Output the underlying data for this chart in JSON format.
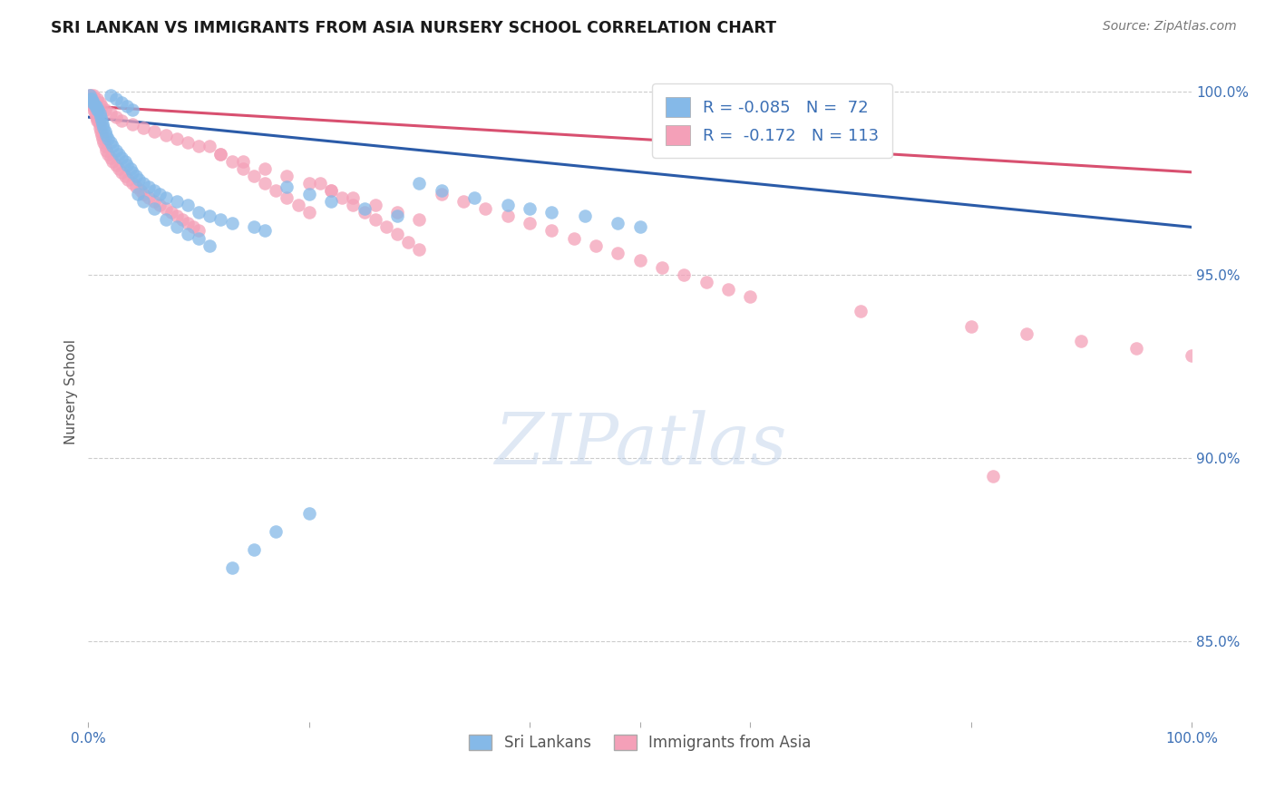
{
  "title": "SRI LANKAN VS IMMIGRANTS FROM ASIA NURSERY SCHOOL CORRELATION CHART",
  "source": "Source: ZipAtlas.com",
  "ylabel": "Nursery School",
  "legend_sri": "Sri Lankans",
  "legend_imm": "Immigrants from Asia",
  "legend_r_sri": "R = -0.085",
  "legend_n_sri": "N =  72",
  "legend_r_imm": "R =  -0.172",
  "legend_n_imm": "N = 113",
  "color_sri": "#85B9E8",
  "color_imm": "#F4A0B8",
  "color_line_sri": "#2B5BA8",
  "color_line_imm": "#D85070",
  "ytick_labels": [
    "85.0%",
    "90.0%",
    "95.0%",
    "100.0%"
  ],
  "ytick_values": [
    0.85,
    0.9,
    0.95,
    1.0
  ],
  "ylim_min": 0.828,
  "ylim_max": 1.008,
  "background_color": "#FFFFFF",
  "grid_color": "#CCCCCC",
  "sri_x": [
    0.001,
    0.002,
    0.003,
    0.004,
    0.005,
    0.006,
    0.007,
    0.008,
    0.009,
    0.01,
    0.011,
    0.012,
    0.013,
    0.014,
    0.015,
    0.016,
    0.018,
    0.02,
    0.022,
    0.025,
    0.028,
    0.03,
    0.033,
    0.035,
    0.038,
    0.04,
    0.043,
    0.046,
    0.05,
    0.055,
    0.06,
    0.065,
    0.07,
    0.08,
    0.09,
    0.1,
    0.11,
    0.12,
    0.13,
    0.15,
    0.16,
    0.18,
    0.2,
    0.22,
    0.25,
    0.28,
    0.3,
    0.32,
    0.35,
    0.38,
    0.4,
    0.42,
    0.45,
    0.48,
    0.5,
    0.02,
    0.025,
    0.03,
    0.035,
    0.04,
    0.045,
    0.05,
    0.06,
    0.07,
    0.08,
    0.09,
    0.1,
    0.11,
    0.13,
    0.15,
    0.17,
    0.2
  ],
  "sri_y": [
    0.999,
    0.998,
    0.998,
    0.997,
    0.997,
    0.996,
    0.996,
    0.995,
    0.995,
    0.994,
    0.993,
    0.992,
    0.991,
    0.99,
    0.989,
    0.988,
    0.987,
    0.986,
    0.985,
    0.984,
    0.983,
    0.982,
    0.981,
    0.98,
    0.979,
    0.978,
    0.977,
    0.976,
    0.975,
    0.974,
    0.973,
    0.972,
    0.971,
    0.97,
    0.969,
    0.967,
    0.966,
    0.965,
    0.964,
    0.963,
    0.962,
    0.974,
    0.972,
    0.97,
    0.968,
    0.966,
    0.975,
    0.973,
    0.971,
    0.969,
    0.968,
    0.967,
    0.966,
    0.964,
    0.963,
    0.999,
    0.998,
    0.997,
    0.996,
    0.995,
    0.972,
    0.97,
    0.968,
    0.965,
    0.963,
    0.961,
    0.96,
    0.958,
    0.87,
    0.875,
    0.88,
    0.885
  ],
  "imm_x": [
    0.001,
    0.002,
    0.002,
    0.003,
    0.003,
    0.004,
    0.004,
    0.005,
    0.005,
    0.006,
    0.006,
    0.007,
    0.007,
    0.008,
    0.008,
    0.009,
    0.01,
    0.01,
    0.011,
    0.012,
    0.013,
    0.014,
    0.015,
    0.016,
    0.018,
    0.02,
    0.022,
    0.025,
    0.028,
    0.03,
    0.033,
    0.036,
    0.04,
    0.043,
    0.047,
    0.05,
    0.055,
    0.06,
    0.065,
    0.07,
    0.075,
    0.08,
    0.085,
    0.09,
    0.095,
    0.1,
    0.11,
    0.12,
    0.13,
    0.14,
    0.15,
    0.16,
    0.17,
    0.18,
    0.19,
    0.2,
    0.21,
    0.22,
    0.23,
    0.24,
    0.25,
    0.26,
    0.27,
    0.28,
    0.29,
    0.3,
    0.32,
    0.34,
    0.36,
    0.38,
    0.4,
    0.42,
    0.44,
    0.46,
    0.48,
    0.5,
    0.52,
    0.54,
    0.56,
    0.58,
    0.6,
    0.7,
    0.8,
    0.85,
    0.9,
    0.95,
    1.0,
    0.005,
    0.008,
    0.01,
    0.012,
    0.015,
    0.02,
    0.025,
    0.03,
    0.04,
    0.05,
    0.06,
    0.07,
    0.08,
    0.09,
    0.1,
    0.12,
    0.14,
    0.16,
    0.18,
    0.2,
    0.22,
    0.24,
    0.26,
    0.28,
    0.3,
    0.82
  ],
  "imm_y": [
    0.999,
    0.999,
    0.998,
    0.998,
    0.997,
    0.997,
    0.996,
    0.996,
    0.995,
    0.995,
    0.994,
    0.994,
    0.993,
    0.993,
    0.992,
    0.992,
    0.991,
    0.99,
    0.989,
    0.988,
    0.987,
    0.986,
    0.985,
    0.984,
    0.983,
    0.982,
    0.981,
    0.98,
    0.979,
    0.978,
    0.977,
    0.976,
    0.975,
    0.974,
    0.973,
    0.972,
    0.971,
    0.97,
    0.969,
    0.968,
    0.967,
    0.966,
    0.965,
    0.964,
    0.963,
    0.962,
    0.985,
    0.983,
    0.981,
    0.979,
    0.977,
    0.975,
    0.973,
    0.971,
    0.969,
    0.967,
    0.975,
    0.973,
    0.971,
    0.969,
    0.967,
    0.965,
    0.963,
    0.961,
    0.959,
    0.957,
    0.972,
    0.97,
    0.968,
    0.966,
    0.964,
    0.962,
    0.96,
    0.958,
    0.956,
    0.954,
    0.952,
    0.95,
    0.948,
    0.946,
    0.944,
    0.94,
    0.936,
    0.934,
    0.932,
    0.93,
    0.928,
    0.999,
    0.998,
    0.997,
    0.996,
    0.995,
    0.994,
    0.993,
    0.992,
    0.991,
    0.99,
    0.989,
    0.988,
    0.987,
    0.986,
    0.985,
    0.983,
    0.981,
    0.979,
    0.977,
    0.975,
    0.973,
    0.971,
    0.969,
    0.967,
    0.965,
    0.895
  ]
}
